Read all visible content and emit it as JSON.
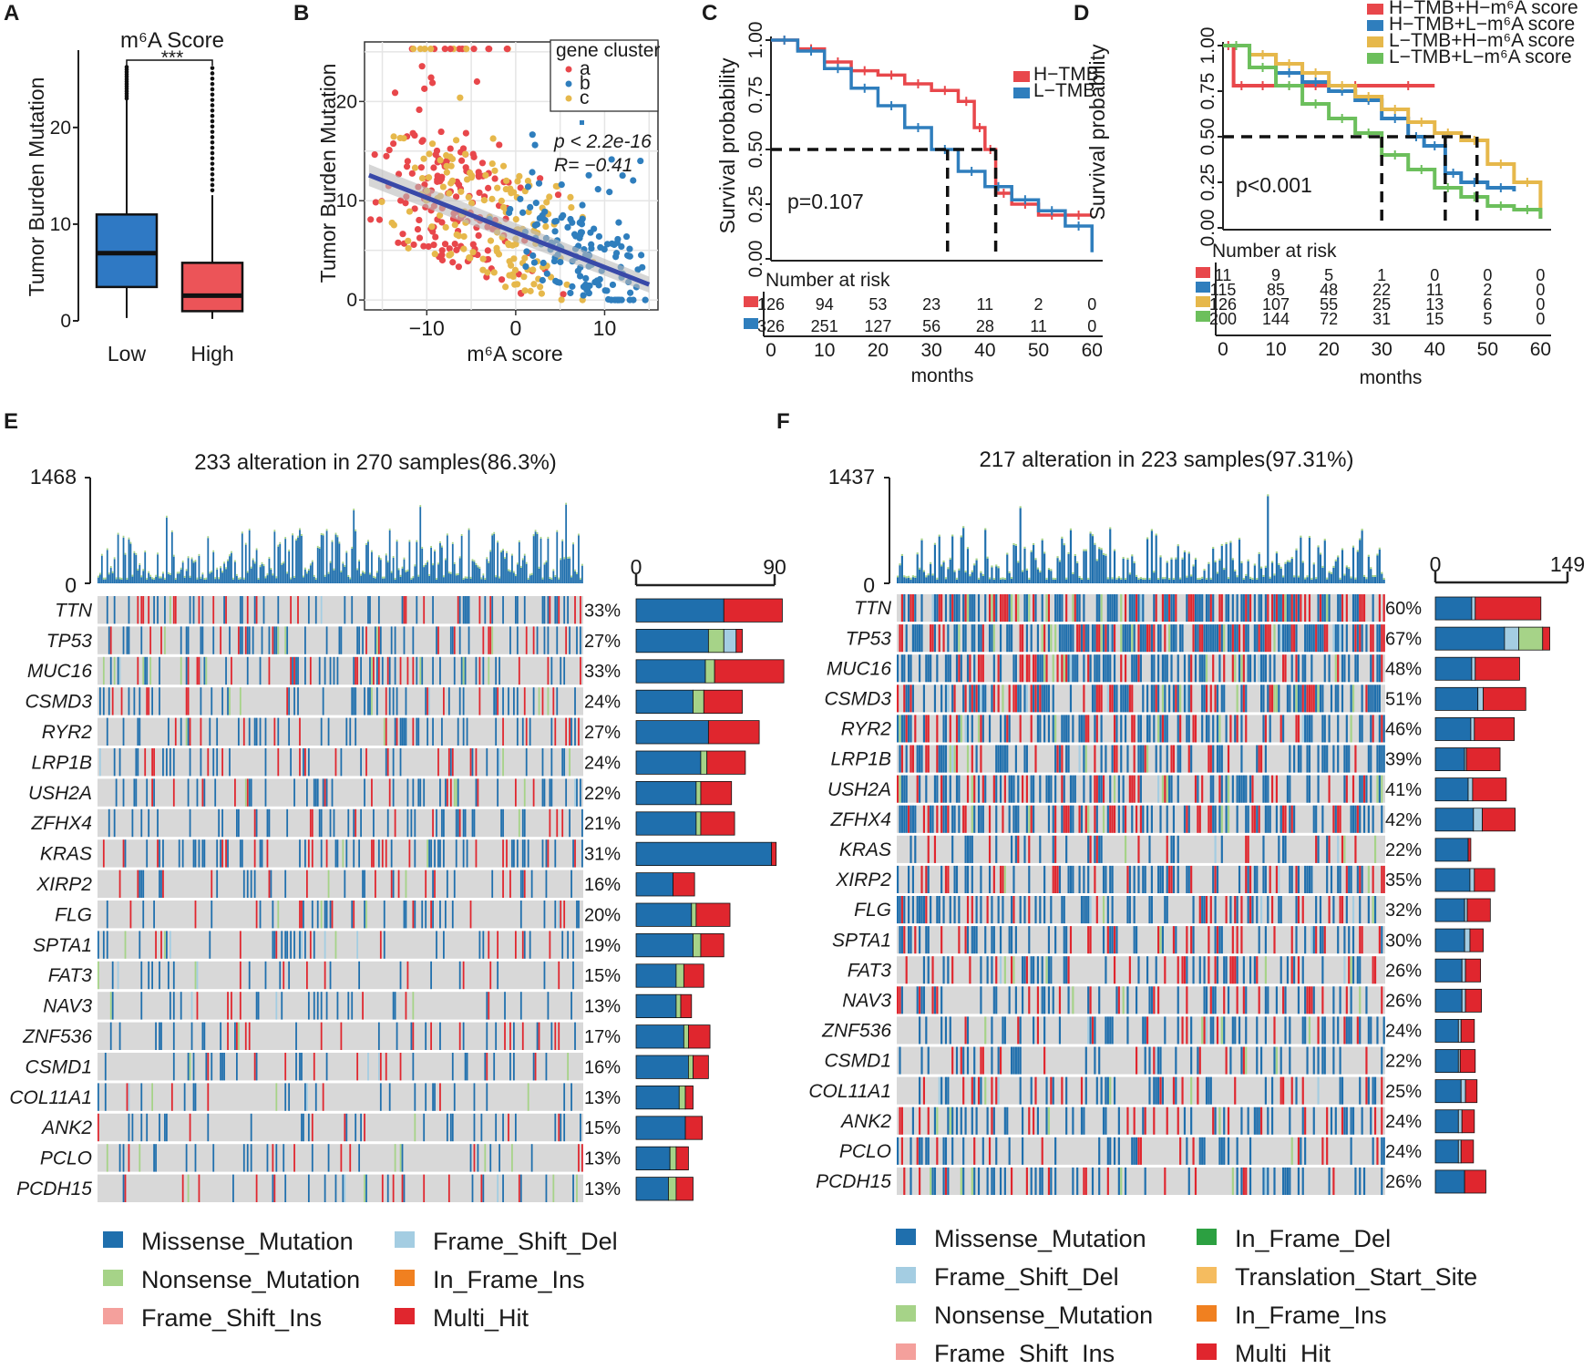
{
  "colors": {
    "missense": "#1f6fad",
    "nonsense": "#a6d388",
    "frameshift_ins": "#f4a09c",
    "frameshift_del": "#a4cde2",
    "inframe_ins": "#f08020",
    "inframe_del": "#2ca041",
    "translation_start": "#f5bc5f",
    "multi_hit": "#e0262e",
    "red": "#e8474b",
    "blue": "#2f7ebd",
    "yellow": "#e6b84b",
    "green": "#6cbf5c",
    "boxblue": "#2f79c4",
    "boxred": "#ec5458"
  },
  "panelA": {
    "label": "A",
    "title": "m⁶A Score",
    "ylabel": "Tumor Burden Mutation",
    "sig": "***",
    "chart_data": {
      "type": "box",
      "title": "m⁶A Score",
      "ylabel": "Tumor Burden Mutation",
      "categories": [
        "Low",
        "High"
      ],
      "ylim": [
        0,
        28
      ],
      "yticks": [
        0,
        10,
        20
      ],
      "boxes": [
        {
          "name": "Low",
          "q1": 3.5,
          "median": 7,
          "q3": 11,
          "lo": 0.3,
          "hi": 23
        },
        {
          "name": "High",
          "q1": 1,
          "median": 2.6,
          "q3": 6,
          "lo": 0.2,
          "hi": 13
        }
      ]
    }
  },
  "panelB": {
    "label": "B",
    "xlabel": "m⁶A score",
    "ylabel": "Tumor Burden Mutation",
    "legend_title": "gene cluster",
    "legend": [
      "a",
      "b",
      "c"
    ],
    "stat_p": "p < 2.2e-16",
    "stat_r": "R= −0.41",
    "chart_data": {
      "type": "scatter",
      "xlabel": "m⁶A score",
      "ylabel": "Tumor Burden Mutation",
      "xlim": [
        -17,
        16
      ],
      "ylim": [
        -1,
        26
      ],
      "xticks": [
        -10,
        0,
        10
      ],
      "yticks": [
        0,
        10,
        20
      ],
      "regression": {
        "slope": -0.35,
        "intercept": 6.8
      },
      "series": [
        "a",
        "b",
        "c"
      ]
    }
  },
  "panelC": {
    "label": "C",
    "p": "p=0.107",
    "xlabel": "months",
    "ylabel": "Survival probability",
    "risk_title": "Number at risk",
    "chart_data": {
      "type": "line",
      "xlabel": "months",
      "ylabel": "Survival probability",
      "xticks": [
        0,
        10,
        20,
        30,
        40,
        50,
        60
      ],
      "yticks": [
        "0.00",
        "0.25",
        "0.50",
        "0.75",
        "1.00"
      ],
      "series": [
        {
          "name": "H−TMB",
          "color": "red",
          "x": [
            0,
            5,
            10,
            15,
            20,
            25,
            30,
            35,
            38,
            40,
            42,
            45,
            50,
            55,
            60
          ],
          "y": [
            1.0,
            0.96,
            0.9,
            0.86,
            0.84,
            0.8,
            0.77,
            0.72,
            0.6,
            0.5,
            0.3,
            0.25,
            0.2,
            0.2,
            0.2
          ]
        },
        {
          "name": "L−TMB",
          "color": "blue",
          "x": [
            0,
            5,
            10,
            15,
            20,
            25,
            30,
            35,
            40,
            45,
            50,
            55,
            60
          ],
          "y": [
            1.0,
            0.95,
            0.87,
            0.78,
            0.7,
            0.6,
            0.5,
            0.4,
            0.33,
            0.27,
            0.22,
            0.15,
            0.03
          ]
        }
      ],
      "median_lines": [
        {
          "x": 33
        },
        {
          "x": 42
        }
      ],
      "median_y": 0.5,
      "risk": [
        {
          "color": "red",
          "values": [
            "126",
            "94",
            "53",
            "23",
            "11",
            "2",
            "0"
          ]
        },
        {
          "color": "blue",
          "values": [
            "326",
            "251",
            "127",
            "56",
            "28",
            "11",
            "0"
          ]
        }
      ]
    }
  },
  "panelD": {
    "label": "D",
    "p": "p<0.001",
    "xlabel": "months",
    "ylabel": "Survival probability",
    "risk_title": "Number at risk",
    "chart_data": {
      "type": "line",
      "xlabel": "months",
      "ylabel": "Survival probability",
      "xticks": [
        0,
        10,
        20,
        30,
        40,
        50,
        60
      ],
      "yticks": [
        "0.00",
        "0.25",
        "0.50",
        "0.75",
        "1.00"
      ],
      "series": [
        {
          "name": "H−TMB+H−m⁶A score",
          "color": "red",
          "x": [
            0,
            2,
            5,
            10,
            15,
            20,
            30,
            40
          ],
          "y": [
            1.0,
            0.78,
            0.78,
            0.78,
            0.78,
            0.78,
            0.78,
            0.78
          ]
        },
        {
          "name": "H−TMB+L−m⁶A score",
          "color": "blue",
          "x": [
            0,
            5,
            10,
            15,
            20,
            25,
            30,
            35,
            38,
            42,
            45,
            50,
            55
          ],
          "y": [
            1.0,
            0.95,
            0.85,
            0.8,
            0.75,
            0.7,
            0.6,
            0.5,
            0.45,
            0.3,
            0.25,
            0.22,
            0.2
          ]
        },
        {
          "name": "L−TMB+H−m⁶A score",
          "color": "yellow",
          "x": [
            0,
            5,
            10,
            15,
            20,
            25,
            30,
            35,
            40,
            45,
            50,
            55,
            60
          ],
          "y": [
            1.0,
            0.95,
            0.9,
            0.85,
            0.78,
            0.72,
            0.65,
            0.58,
            0.52,
            0.48,
            0.35,
            0.25,
            0.05
          ]
        },
        {
          "name": "L−TMB+L−m⁶A score",
          "color": "green",
          "x": [
            0,
            5,
            10,
            15,
            20,
            25,
            30,
            35,
            40,
            45,
            50,
            55,
            60
          ],
          "y": [
            1.0,
            0.88,
            0.78,
            0.68,
            0.6,
            0.52,
            0.4,
            0.32,
            0.22,
            0.17,
            0.12,
            0.1,
            0.05
          ]
        }
      ],
      "median_lines": [
        {
          "x": 30
        },
        {
          "x": 42
        },
        {
          "x": 48
        }
      ],
      "median_y": 0.5,
      "risk": [
        {
          "color": "red",
          "values": [
            "11",
            "9",
            "5",
            "1",
            "0",
            "0",
            "0"
          ]
        },
        {
          "color": "blue",
          "values": [
            "115",
            "85",
            "48",
            "22",
            "11",
            "2",
            "0"
          ]
        },
        {
          "color": "yellow",
          "values": [
            "126",
            "107",
            "55",
            "25",
            "13",
            "6",
            "0"
          ]
        },
        {
          "color": "green",
          "values": [
            "200",
            "144",
            "72",
            "31",
            "15",
            "5",
            "0"
          ]
        }
      ]
    }
  },
  "panelE": {
    "label": "E",
    "title": "233 alteration in 270 samples(86.3%)",
    "tmb_max": "1468",
    "tmb_min": "0",
    "bar_min": "0",
    "bar_max": "90",
    "chart_data": {
      "type": "oncoplot",
      "title": "233 alteration in 270 samples(86.3%)",
      "bar_max": 90,
      "genes": [
        "TTN",
        "TP53",
        "MUC16",
        "CSMD3",
        "RYR2",
        "LRP1B",
        "USH2A",
        "ZFHX4",
        "KRAS",
        "XIRP2",
        "FLG",
        "SPTA1",
        "FAT3",
        "NAV3",
        "ZNF536",
        "CSMD1",
        "COL11A1",
        "ANK2",
        "PCLO",
        "PCDH15"
      ],
      "percent": [
        "33%",
        "27%",
        "33%",
        "24%",
        "27%",
        "24%",
        "22%",
        "21%",
        "31%",
        "16%",
        "20%",
        "19%",
        "15%",
        "13%",
        "17%",
        "16%",
        "13%",
        "15%",
        "13%",
        "13%"
      ],
      "bars": [
        [
          57,
          0,
          0,
          0,
          0,
          38
        ],
        [
          47,
          10,
          0,
          8,
          0,
          4
        ],
        [
          45,
          6,
          0,
          0,
          0,
          45
        ],
        [
          37,
          7,
          0,
          0,
          0,
          25
        ],
        [
          47,
          0,
          0,
          0,
          0,
          33
        ],
        [
          42,
          4,
          0,
          0,
          0,
          25
        ],
        [
          39,
          3,
          0,
          0,
          0,
          20
        ],
        [
          39,
          3,
          0,
          0,
          0,
          22
        ],
        [
          88,
          0,
          0,
          0,
          0,
          3
        ],
        [
          24,
          0,
          0,
          0,
          0,
          14
        ],
        [
          36,
          3,
          0,
          0,
          0,
          22
        ],
        [
          37,
          5,
          0,
          0,
          0,
          15
        ],
        [
          26,
          5,
          0,
          0,
          0,
          13
        ],
        [
          26,
          3,
          0,
          0,
          0,
          7
        ],
        [
          31,
          3,
          0,
          0,
          0,
          14
        ],
        [
          34,
          3,
          0,
          0,
          0,
          10
        ],
        [
          28,
          4,
          0,
          0,
          0,
          5
        ],
        [
          32,
          0,
          0,
          0,
          0,
          11
        ],
        [
          22,
          4,
          0,
          0,
          0,
          8
        ],
        [
          21,
          5,
          0,
          0,
          0,
          11
        ]
      ],
      "bar_keys": [
        "missense",
        "nonsense",
        "frameshift_ins",
        "frameshift_del",
        "inframe_ins",
        "multi_hit"
      ]
    },
    "legend": [
      {
        "key": "missense",
        "label": "Missense_Mutation"
      },
      {
        "key": "frameshift_del",
        "label": "Frame_Shift_Del"
      },
      {
        "key": "nonsense",
        "label": "Nonsense_Mutation"
      },
      {
        "key": "inframe_ins",
        "label": "In_Frame_Ins"
      },
      {
        "key": "frameshift_ins",
        "label": "Frame_Shift_Ins"
      },
      {
        "key": "multi_hit",
        "label": "Multi_Hit"
      }
    ]
  },
  "panelF": {
    "label": "F",
    "title": "217 alteration in 223 samples(97.31%)",
    "tmb_max": "1437",
    "tmb_min": "0",
    "bar_min": "0",
    "bar_max": "149",
    "chart_data": {
      "type": "oncoplot",
      "title": "217 alteration in 223 samples(97.31%)",
      "bar_max": 149,
      "genes": [
        "TTN",
        "TP53",
        "MUC16",
        "CSMD3",
        "RYR2",
        "LRP1B",
        "USH2A",
        "ZFHX4",
        "KRAS",
        "XIRP2",
        "FLG",
        "SPTA1",
        "FAT3",
        "NAV3",
        "ZNF536",
        "CSMD1",
        "COL11A1",
        "ANK2",
        "PCLO",
        "PCDH15"
      ],
      "percent": [
        "60%",
        "67%",
        "48%",
        "51%",
        "46%",
        "39%",
        "41%",
        "42%",
        "22%",
        "35%",
        "32%",
        "30%",
        "26%",
        "26%",
        "24%",
        "22%",
        "25%",
        "24%",
        "24%",
        "26%"
      ],
      "bars": [
        [
          41,
          4,
          0,
          0,
          0,
          74
        ],
        [
          78,
          16,
          27,
          0,
          0,
          8
        ],
        [
          41,
          4,
          0,
          0,
          0,
          50
        ],
        [
          48,
          6,
          0,
          0,
          0,
          48
        ],
        [
          40,
          4,
          0,
          0,
          0,
          45
        ],
        [
          33,
          2,
          0,
          0,
          0,
          38
        ],
        [
          37,
          5,
          0,
          0,
          0,
          38
        ],
        [
          43,
          10,
          0,
          0,
          0,
          37
        ],
        [
          37,
          0,
          0,
          0,
          0,
          3
        ],
        [
          39,
          5,
          0,
          0,
          0,
          23
        ],
        [
          33,
          3,
          0,
          0,
          0,
          26
        ],
        [
          33,
          6,
          0,
          0,
          0,
          15
        ],
        [
          30,
          4,
          0,
          0,
          0,
          17
        ],
        [
          30,
          4,
          0,
          0,
          0,
          18
        ],
        [
          26,
          3,
          0,
          0,
          0,
          15
        ],
        [
          26,
          2,
          0,
          0,
          0,
          17
        ],
        [
          29,
          5,
          0,
          0,
          0,
          13
        ],
        [
          26,
          4,
          0,
          0,
          0,
          14
        ],
        [
          26,
          3,
          0,
          0,
          0,
          14
        ],
        [
          33,
          0,
          0,
          0,
          0,
          24
        ]
      ],
      "bar_keys": [
        "missense",
        "frameshift_del",
        "nonsense",
        "inframe_del",
        "translation_start",
        "multi_hit"
      ]
    },
    "legend": [
      {
        "key": "missense",
        "label": "Missense_Mutation"
      },
      {
        "key": "inframe_del",
        "label": "In_Frame_Del"
      },
      {
        "key": "frameshift_del",
        "label": "Frame_Shift_Del"
      },
      {
        "key": "translation_start",
        "label": "Translation_Start_Site"
      },
      {
        "key": "nonsense",
        "label": "Nonsense_Mutation"
      },
      {
        "key": "inframe_ins",
        "label": "In_Frame_Ins"
      },
      {
        "key": "frameshift_ins",
        "label": "Frame_Shift_Ins"
      },
      {
        "key": "multi_hit",
        "label": "Multi_Hit"
      }
    ]
  }
}
